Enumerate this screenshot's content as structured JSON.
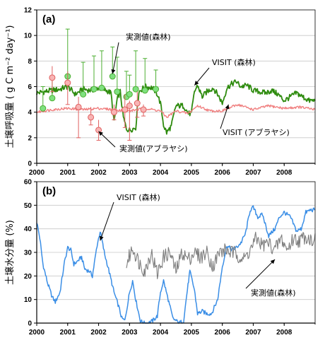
{
  "chart_data": [
    {
      "type": "line",
      "panel_label": "(a)",
      "ylabel": "土壌呼吸量 ( g C m⁻² day⁻¹)",
      "xlim": [
        2000,
        2009
      ],
      "ylim": [
        0,
        12
      ],
      "x_ticks": [
        "2000",
        "2001",
        "2002",
        "2003",
        "2004",
        "2005",
        "2006",
        "2007",
        "2008"
      ],
      "y_ticks": [
        "0",
        "2",
        "4",
        "6",
        "8",
        "10",
        "12"
      ],
      "gridlines": true,
      "annotations": [
        "実測値(森林)",
        "VISIT (森林)",
        "VISIT (アブラヤシ)",
        "実測値(アブラヤシ)"
      ],
      "series": [
        {
          "name": "VISIT (森林)",
          "color": "#2e8b0e",
          "points": [
            [
              2000.0,
              5.5
            ],
            [
              2000.25,
              5.6
            ],
            [
              2000.5,
              5.7
            ],
            [
              2000.75,
              5.8
            ],
            [
              2001.0,
              6.0
            ],
            [
              2001.25,
              5.4
            ],
            [
              2001.5,
              5.8
            ],
            [
              2001.75,
              5.7
            ],
            [
              2002.0,
              5.9
            ],
            [
              2002.25,
              5.7
            ],
            [
              2002.4,
              5.5
            ],
            [
              2002.5,
              3.2
            ],
            [
              2002.6,
              5.0
            ],
            [
              2002.7,
              5.6
            ],
            [
              2002.8,
              3.6
            ],
            [
              2002.9,
              2.7
            ],
            [
              2003.0,
              2.6
            ],
            [
              2003.2,
              2.8
            ],
            [
              2003.3,
              5.6
            ],
            [
              2003.5,
              6.0
            ],
            [
              2003.75,
              5.9
            ],
            [
              2003.9,
              5.4
            ],
            [
              2004.0,
              4.7
            ],
            [
              2004.1,
              3.0
            ],
            [
              2004.2,
              2.4
            ],
            [
              2004.35,
              2.9
            ],
            [
              2004.5,
              4.5
            ],
            [
              2004.75,
              4.5
            ],
            [
              2004.9,
              3.9
            ],
            [
              2005.0,
              3.9
            ],
            [
              2005.1,
              5.6
            ],
            [
              2005.2,
              6.1
            ],
            [
              2005.35,
              5.2
            ],
            [
              2005.5,
              5.6
            ],
            [
              2005.7,
              5.9
            ],
            [
              2005.85,
              5.4
            ],
            [
              2006.0,
              4.7
            ],
            [
              2006.15,
              5.9
            ],
            [
              2006.3,
              6.2
            ],
            [
              2006.45,
              6.4
            ],
            [
              2006.6,
              6.0
            ],
            [
              2006.8,
              6.1
            ],
            [
              2007.0,
              5.7
            ],
            [
              2007.2,
              5.6
            ],
            [
              2007.4,
              5.5
            ],
            [
              2007.6,
              5.7
            ],
            [
              2007.8,
              5.4
            ],
            [
              2008.0,
              4.9
            ],
            [
              2008.2,
              5.2
            ],
            [
              2008.4,
              5.5
            ],
            [
              2008.6,
              5.2
            ],
            [
              2008.8,
              4.9
            ],
            [
              2009.0,
              4.9
            ]
          ]
        },
        {
          "name": "VISIT (アブラヤシ)",
          "color": "#f08080",
          "points": [
            [
              2000.0,
              4.0
            ],
            [
              2000.5,
              4.2
            ],
            [
              2001.0,
              4.3
            ],
            [
              2001.5,
              4.2
            ],
            [
              2002.0,
              4.3
            ],
            [
              2002.5,
              4.2
            ],
            [
              2003.0,
              4.1
            ],
            [
              2003.5,
              4.3
            ],
            [
              2004.0,
              4.1
            ],
            [
              2004.2,
              3.6
            ],
            [
              2004.5,
              4.1
            ],
            [
              2004.9,
              3.9
            ],
            [
              2005.2,
              4.5
            ],
            [
              2005.6,
              4.1
            ],
            [
              2006.0,
              4.1
            ],
            [
              2006.5,
              4.6
            ],
            [
              2007.0,
              4.2
            ],
            [
              2007.5,
              4.5
            ],
            [
              2008.0,
              4.3
            ],
            [
              2008.5,
              4.4
            ],
            [
              2009.0,
              4.2
            ]
          ]
        }
      ],
      "observed_forest": {
        "name": "実測値(森林)",
        "color": "#7fe07f",
        "points": [
          [
            2000.2,
            4.3
          ],
          [
            2000.5,
            5.1
          ],
          [
            2001.0,
            6.8
          ],
          [
            2001.5,
            5.4
          ],
          [
            2001.85,
            5.8
          ],
          [
            2002.1,
            5.9
          ],
          [
            2002.45,
            6.8
          ],
          [
            2002.6,
            5.6
          ],
          [
            2002.9,
            5.2
          ],
          [
            2003.0,
            5.4
          ],
          [
            2003.2,
            5.8
          ],
          [
            2003.5,
            5.7
          ],
          [
            2003.85,
            5.8
          ]
        ],
        "error_high": [
          6.0,
          6.6,
          10.5,
          7.9,
          8.4,
          8.8,
          9.1,
          8.3,
          7.2,
          6.9,
          8.8,
          8.2,
          7.3
        ]
      },
      "observed_oilpalm": {
        "name": "実測値(アブラヤシ)",
        "color": "#f8b4b4",
        "points": [
          [
            2000.5,
            6.7
          ],
          [
            2001.0,
            6.3
          ],
          [
            2001.35,
            4.4
          ],
          [
            2001.75,
            3.6
          ],
          [
            2002.0,
            2.6
          ],
          [
            2002.5,
            4.0
          ],
          [
            2002.85,
            4.2
          ],
          [
            2003.0,
            4.5
          ],
          [
            2003.25,
            4.7
          ],
          [
            2003.45,
            4.2
          ]
        ],
        "error_low": [
          5.6,
          4.6,
          2.0,
          3.0,
          1.8,
          3.4,
          2.8,
          1.8,
          3.6,
          3.7
        ],
        "error_high": [
          7.6,
          7.2,
          5.2,
          4.4,
          3.4,
          4.6,
          5.4,
          4.9,
          5.6,
          4.6
        ]
      }
    },
    {
      "type": "line",
      "panel_label": "(b)",
      "ylabel": "土壌水分量 (%)",
      "xlim": [
        2000,
        2009
      ],
      "ylim": [
        0,
        60
      ],
      "x_ticks": [
        "2000",
        "2001",
        "2002",
        "2003",
        "2004",
        "2005",
        "2006",
        "2007",
        "2008"
      ],
      "y_ticks": [
        "0",
        "10",
        "20",
        "30",
        "40",
        "50",
        "60"
      ],
      "gridlines": true,
      "annotations": [
        "VISIT (森林)",
        "実測値(森林)"
      ],
      "series": [
        {
          "name": "VISIT (森林)",
          "color": "#3a8ee6",
          "points": [
            [
              2000.0,
              43
            ],
            [
              2000.1,
              36
            ],
            [
              2000.2,
              25
            ],
            [
              2000.35,
              17
            ],
            [
              2000.5,
              11
            ],
            [
              2000.6,
              9
            ],
            [
              2000.75,
              13
            ],
            [
              2000.9,
              26
            ],
            [
              2001.0,
              32
            ],
            [
              2001.1,
              31
            ],
            [
              2001.2,
              25
            ],
            [
              2001.3,
              26
            ],
            [
              2001.45,
              28
            ],
            [
              2001.55,
              23
            ],
            [
              2001.7,
              22
            ],
            [
              2001.8,
              20
            ],
            [
              2001.95,
              33
            ],
            [
              2002.05,
              39
            ],
            [
              2002.2,
              29
            ],
            [
              2002.3,
              24
            ],
            [
              2002.5,
              13
            ],
            [
              2002.65,
              7
            ],
            [
              2002.75,
              2
            ],
            [
              2002.85,
              1
            ],
            [
              2003.0,
              13
            ],
            [
              2003.1,
              18
            ],
            [
              2003.2,
              10
            ],
            [
              2003.35,
              1
            ],
            [
              2003.45,
              0
            ],
            [
              2003.6,
              0
            ],
            [
              2003.75,
              1
            ],
            [
              2003.9,
              3
            ],
            [
              2004.0,
              13
            ],
            [
              2004.1,
              18
            ],
            [
              2004.25,
              10
            ],
            [
              2004.4,
              2
            ],
            [
              2004.5,
              1
            ],
            [
              2004.6,
              0
            ],
            [
              2004.75,
              1
            ],
            [
              2004.85,
              12
            ],
            [
              2004.95,
              22
            ],
            [
              2005.1,
              14
            ],
            [
              2005.2,
              4
            ],
            [
              2005.35,
              5
            ],
            [
              2005.5,
              4
            ],
            [
              2005.65,
              4
            ],
            [
              2005.85,
              10
            ],
            [
              2006.0,
              24
            ],
            [
              2006.15,
              33
            ],
            [
              2006.3,
              31
            ],
            [
              2006.45,
              32
            ],
            [
              2006.6,
              34
            ],
            [
              2006.75,
              38
            ],
            [
              2006.9,
              48
            ],
            [
              2007.0,
              49
            ],
            [
              2007.15,
              45
            ],
            [
              2007.3,
              46
            ],
            [
              2007.5,
              37
            ],
            [
              2007.7,
              40
            ],
            [
              2007.85,
              45
            ],
            [
              2008.0,
              47
            ],
            [
              2008.2,
              45
            ],
            [
              2008.4,
              39
            ],
            [
              2008.55,
              40
            ],
            [
              2008.7,
              47
            ],
            [
              2008.85,
              48
            ],
            [
              2009.0,
              48
            ]
          ]
        },
        {
          "name": "実測値(森林)",
          "color": "#7d7d7d",
          "points": [
            [
              2002.9,
              25
            ],
            [
              2003.1,
              32
            ],
            [
              2003.3,
              26
            ],
            [
              2003.5,
              22
            ],
            [
              2003.7,
              30
            ],
            [
              2003.9,
              21
            ],
            [
              2004.1,
              28
            ],
            [
              2004.3,
              30
            ],
            [
              2004.5,
              22
            ],
            [
              2004.7,
              30
            ],
            [
              2004.9,
              27
            ],
            [
              2005.1,
              30
            ],
            [
              2005.3,
              28
            ],
            [
              2005.5,
              30
            ],
            [
              2005.7,
              24
            ],
            [
              2005.9,
              30
            ],
            [
              2006.1,
              31
            ],
            [
              2006.3,
              30
            ],
            [
              2006.5,
              29
            ],
            [
              2006.7,
              27
            ],
            [
              2006.9,
              31
            ],
            [
              2007.1,
              36
            ],
            [
              2007.3,
              33
            ],
            [
              2007.5,
              34
            ],
            [
              2007.7,
              31
            ],
            [
              2007.9,
              36
            ],
            [
              2008.1,
              31
            ],
            [
              2008.3,
              36
            ],
            [
              2008.5,
              35
            ],
            [
              2008.7,
              37
            ],
            [
              2008.9,
              35
            ],
            [
              2009.0,
              38
            ]
          ]
        }
      ]
    }
  ]
}
